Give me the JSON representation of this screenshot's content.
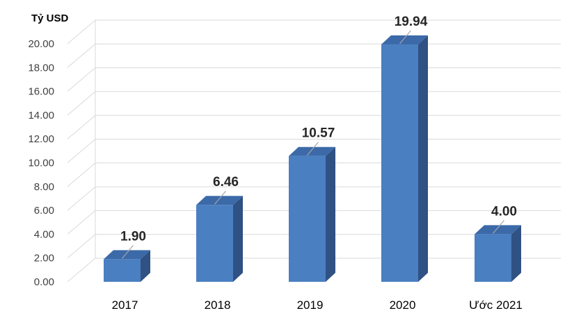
{
  "chart_data": {
    "type": "bar",
    "ylabel": "Tỷ USD",
    "categories": [
      "2017",
      "2018",
      "2019",
      "2020",
      "Ước 2021"
    ],
    "values": [
      1.9,
      6.46,
      10.57,
      19.94,
      4.0
    ],
    "data_labels": [
      "1.90",
      "6.46",
      "10.57",
      "19.94",
      "4.00"
    ],
    "ylim": [
      0,
      20
    ],
    "yticks": [
      "0.00",
      "2.00",
      "4.00",
      "6.00",
      "8.00",
      "10.00",
      "12.00",
      "14.00",
      "16.00",
      "18.00",
      "20.00"
    ],
    "grid": true,
    "style": "3d-column",
    "colors": {
      "bar_front": "#4a7fc1",
      "bar_side": "#2f5184",
      "bar_top": "#3c6aa8",
      "grid": "#d9d9d9"
    }
  }
}
